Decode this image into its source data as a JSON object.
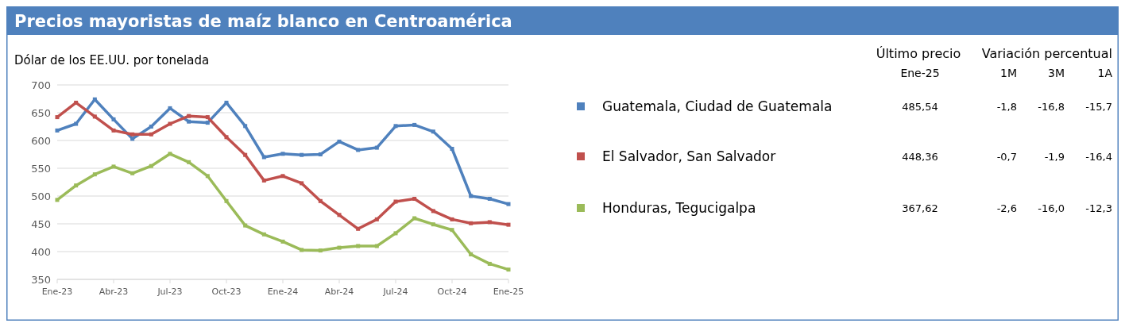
{
  "chart_data": {
    "type": "line",
    "title": "Precios mayoristas de maíz blanco en Centroamérica",
    "ylabel": "Dólar de los EE.UU. por tonelada",
    "categories": [
      "Ene-23",
      null,
      null,
      "Abr-23",
      null,
      null,
      "Jul-23",
      null,
      null,
      "Oct-23",
      null,
      null,
      "Ene-24",
      null,
      null,
      "Abr-24",
      null,
      null,
      "Jul-24",
      null,
      null,
      "Oct-24",
      null,
      null,
      "Ene-25"
    ],
    "series": [
      {
        "name": "Guatemala, Ciudad de Guatemala",
        "color": "#4f81bd",
        "values": [
          618,
          630,
          674,
          638,
          603,
          625,
          658,
          634,
          632,
          668,
          626,
          570,
          576,
          574,
          575,
          598,
          583,
          587,
          626,
          628,
          616,
          585,
          500,
          495,
          485.54
        ]
      },
      {
        "name": "El Salvador, San Salvador",
        "color": "#c0504d",
        "values": [
          642,
          668,
          643,
          618,
          611,
          611,
          630,
          644,
          642,
          606,
          574,
          528,
          536,
          523,
          491,
          466,
          441,
          458,
          490,
          495,
          473,
          458,
          451,
          453,
          448.36
        ]
      },
      {
        "name": "Honduras, Tegucigalpa",
        "color": "#9bbb59",
        "values": [
          493,
          519,
          539,
          553,
          541,
          554,
          576,
          561,
          536,
          491,
          447,
          431,
          418,
          403,
          402,
          407,
          410,
          410,
          433,
          460,
          449,
          439,
          395,
          378,
          367.62
        ]
      }
    ],
    "ylim": [
      350,
      700
    ],
    "yticks": [
      350,
      400,
      450,
      500,
      550,
      600,
      650,
      700
    ],
    "grid": "y",
    "legend": "right",
    "marker": "square",
    "line_style": "solid",
    "annotations": [
      "Último precio",
      "Variación percentual",
      "Ene-25",
      "1M",
      "3M",
      "1A",
      "485,54",
      "-1,8",
      "-16,8",
      "-15,7",
      "448,36",
      "-0,7",
      "-1,9",
      "-16,4",
      "367,62",
      "-2,6",
      "-16,0",
      "-12,3"
    ]
  }
}
